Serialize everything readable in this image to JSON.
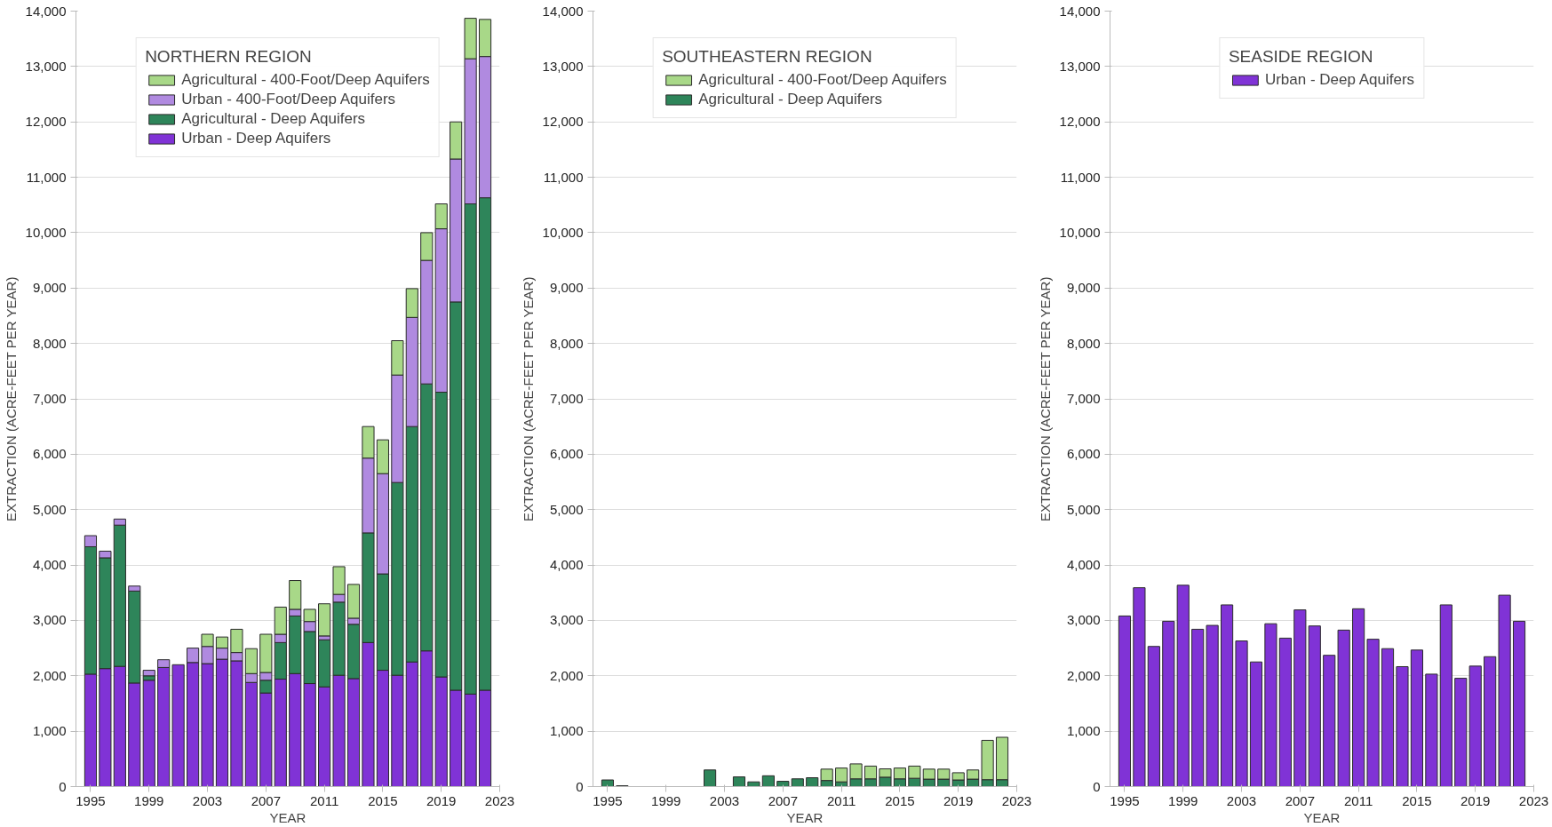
{
  "chart_data": [
    {
      "type": "bar",
      "stacked": true,
      "xlabel": "YEAR",
      "ylabel": "EXTRACTION (ACRE-FEET PER YEAR)",
      "legend_title": "NORTHERN REGION",
      "legend": "top",
      "grid": "y",
      "x": [
        1995,
        1996,
        1997,
        1998,
        1999,
        2000,
        2001,
        2002,
        2003,
        2004,
        2005,
        2006,
        2007,
        2008,
        2009,
        2010,
        2011,
        2012,
        2013,
        2014,
        2015,
        2016,
        2017,
        2018,
        2019,
        2020,
        2021,
        2022
      ],
      "xlim": [
        1994,
        2023
      ],
      "xticks": [
        1995,
        1999,
        2003,
        2007,
        2011,
        2015,
        2019,
        2023
      ],
      "ylim": [
        0,
        14000
      ],
      "yticks": [
        0,
        {
          "value": 1000,
          "label": "1,000"
        },
        {
          "value": 2000,
          "label": "2,000"
        },
        {
          "value": 3000,
          "label": "3,000"
        },
        {
          "value": 4000,
          "label": "4,000"
        },
        {
          "value": 5000,
          "label": "5,000"
        },
        {
          "value": 6000,
          "label": "6,000"
        },
        {
          "value": 7000,
          "label": "7,000"
        },
        {
          "value": 8000,
          "label": "8,000"
        },
        {
          "value": 9000,
          "label": "9,000"
        },
        {
          "value": 10000,
          "label": "10,000"
        },
        {
          "value": 11000,
          "label": "11,000"
        },
        {
          "value": 12000,
          "label": "12,000"
        },
        {
          "value": 13000,
          "label": "13,000"
        },
        {
          "value": 14000,
          "label": "14,000"
        }
      ],
      "series": [
        {
          "name": "Urban - Deep Aquifers",
          "color": "#8033d6",
          "values": [
            2030,
            2130,
            2170,
            1870,
            1920,
            2150,
            2200,
            2240,
            2220,
            2300,
            2270,
            1880,
            1690,
            1940,
            2040,
            1860,
            1800,
            2010,
            1950,
            2600,
            2100,
            2010,
            2250,
            2450,
            1980,
            1740,
            1670,
            1740
          ]
        },
        {
          "name": "Agricultural - Deep Aquifers",
          "color": "#2e855a",
          "values": [
            2300,
            2000,
            2550,
            1660,
            80,
            null,
            null,
            null,
            null,
            null,
            null,
            null,
            230,
            660,
            1040,
            940,
            850,
            1320,
            980,
            1980,
            1740,
            3480,
            4250,
            4820,
            5140,
            7010,
            8850,
            8890
          ]
        },
        {
          "name": "Urban - 400-Foot/Deep Aquifers",
          "color": "#b08ae0",
          "values": [
            200,
            120,
            110,
            90,
            100,
            140,
            null,
            260,
            310,
            200,
            150,
            160,
            140,
            150,
            120,
            180,
            70,
            140,
            110,
            1350,
            1810,
            1940,
            1970,
            2230,
            2950,
            2580,
            2620,
            2550
          ]
        },
        {
          "name": "Agricultural - 400-Foot/Deep Aquifers",
          "color": "#a8d888",
          "values": [
            null,
            null,
            null,
            null,
            null,
            null,
            null,
            null,
            220,
            200,
            420,
            450,
            690,
            490,
            520,
            220,
            580,
            500,
            610,
            570,
            610,
            620,
            520,
            500,
            450,
            670,
            730,
            670
          ]
        }
      ]
    },
    {
      "type": "bar",
      "stacked": true,
      "xlabel": "YEAR",
      "ylabel": "EXTRACTION (ACRE-FEET PER YEAR)",
      "legend_title": "SOUTHEASTERN REGION",
      "legend": "top",
      "grid": "y",
      "x": [
        1995,
        1996,
        1997,
        1998,
        1999,
        2000,
        2001,
        2002,
        2003,
        2004,
        2005,
        2006,
        2007,
        2008,
        2009,
        2010,
        2011,
        2012,
        2013,
        2014,
        2015,
        2016,
        2017,
        2018,
        2019,
        2020,
        2021,
        2022
      ],
      "xlim": [
        1994,
        2023
      ],
      "xticks": [
        1995,
        1999,
        2003,
        2007,
        2011,
        2015,
        2019,
        2023
      ],
      "ylim": [
        0,
        14000
      ],
      "yticks": [
        0,
        {
          "value": 1000,
          "label": "1,000"
        },
        {
          "value": 2000,
          "label": "2,000"
        },
        {
          "value": 3000,
          "label": "3,000"
        },
        {
          "value": 4000,
          "label": "4,000"
        },
        {
          "value": 5000,
          "label": "5,000"
        },
        {
          "value": 6000,
          "label": "6,000"
        },
        {
          "value": 7000,
          "label": "7,000"
        },
        {
          "value": 8000,
          "label": "8,000"
        },
        {
          "value": 9000,
          "label": "9,000"
        },
        {
          "value": 10000,
          "label": "10,000"
        },
        {
          "value": 11000,
          "label": "11,000"
        },
        {
          "value": 12000,
          "label": "12,000"
        },
        {
          "value": 13000,
          "label": "13,000"
        },
        {
          "value": 14000,
          "label": "14,000"
        }
      ],
      "series": [
        {
          "name": "Agricultural - Deep Aquifers",
          "color": "#2e855a",
          "values": [
            120,
            15,
            null,
            null,
            null,
            null,
            null,
            300,
            null,
            175,
            85,
            195,
            95,
            140,
            160,
            110,
            85,
            140,
            140,
            170,
            140,
            150,
            135,
            135,
            120,
            135,
            125,
            125
          ]
        },
        {
          "name": "Agricultural - 400-Foot/Deep Aquifers",
          "color": "#a8d888",
          "values": [
            null,
            null,
            null,
            null,
            null,
            null,
            null,
            null,
            null,
            null,
            null,
            null,
            null,
            null,
            null,
            205,
            250,
            270,
            230,
            150,
            195,
            220,
            180,
            180,
            130,
            165,
            710,
            765
          ]
        }
      ]
    },
    {
      "type": "bar",
      "stacked": true,
      "xlabel": "YEAR",
      "ylabel": "EXTRACTION (ACRE-FEET PER YEAR)",
      "legend_title": "SEASIDE REGION",
      "legend": "top",
      "grid": "y",
      "x": [
        1995,
        1996,
        1997,
        1998,
        1999,
        2000,
        2001,
        2002,
        2003,
        2004,
        2005,
        2006,
        2007,
        2008,
        2009,
        2010,
        2011,
        2012,
        2013,
        2014,
        2015,
        2016,
        2017,
        2018,
        2019,
        2020,
        2021,
        2022
      ],
      "xlim": [
        1994,
        2023
      ],
      "xticks": [
        1995,
        1999,
        2003,
        2007,
        2011,
        2015,
        2019,
        2023
      ],
      "ylim": [
        0,
        14000
      ],
      "yticks": [
        0,
        {
          "value": 1000,
          "label": "1,000"
        },
        {
          "value": 2000,
          "label": "2,000"
        },
        {
          "value": 3000,
          "label": "3,000"
        },
        {
          "value": 4000,
          "label": "4,000"
        },
        {
          "value": 5000,
          "label": "5,000"
        },
        {
          "value": 6000,
          "label": "6,000"
        },
        {
          "value": 7000,
          "label": "7,000"
        },
        {
          "value": 8000,
          "label": "8,000"
        },
        {
          "value": 9000,
          "label": "9,000"
        },
        {
          "value": 10000,
          "label": "10,000"
        },
        {
          "value": 11000,
          "label": "11,000"
        },
        {
          "value": 12000,
          "label": "12,000"
        },
        {
          "value": 13000,
          "label": "13,000"
        },
        {
          "value": 14000,
          "label": "14,000"
        }
      ],
      "series": [
        {
          "name": "Urban - Deep Aquifers",
          "color": "#8033d6",
          "values": [
            3080,
            3590,
            2530,
            2985,
            3635,
            2840,
            2910,
            3280,
            2630,
            2250,
            2940,
            2680,
            3190,
            2900,
            2370,
            2825,
            3210,
            2660,
            2490,
            2165,
            2465,
            2030,
            3280,
            1955,
            2175,
            2345,
            3455,
            2985
          ]
        }
      ]
    }
  ]
}
